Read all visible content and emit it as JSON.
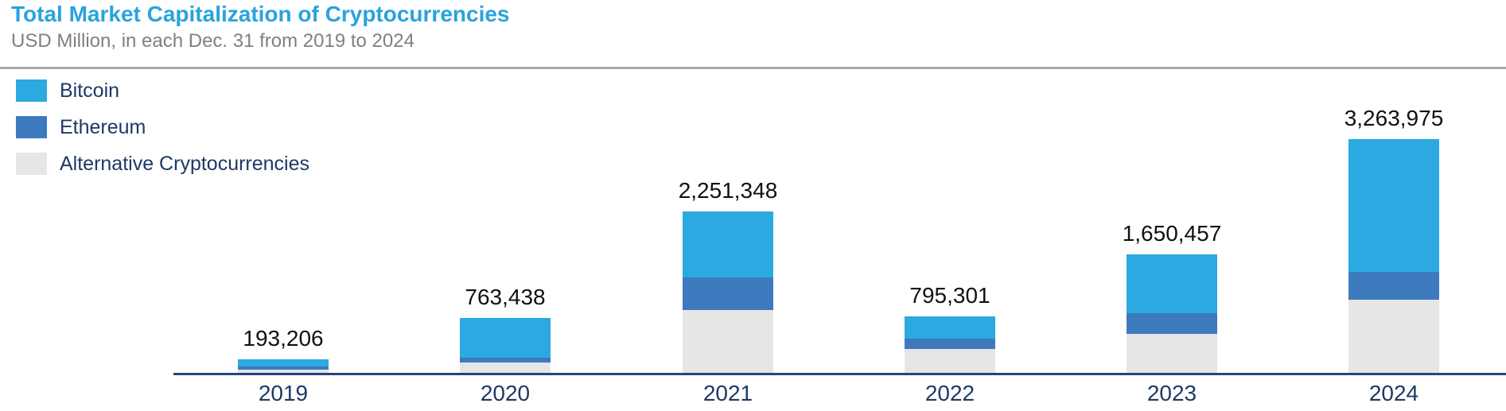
{
  "header": {
    "title": "Total Market Capitalization of Cryptocurrencies",
    "subtitle": "USD Million, in each Dec. 31 from 2019 to 2024"
  },
  "legend": {
    "items": [
      {
        "id": "bitcoin",
        "label": "Bitcoin",
        "color": "#2ba9e0"
      },
      {
        "id": "ethereum",
        "label": "Ethereum",
        "color": "#3d7abe"
      },
      {
        "id": "alternative",
        "label": "Alternative Cryptocurrencies",
        "color": "#e6e6e6"
      }
    ]
  },
  "colors": {
    "title_accent": "#29a3dd",
    "subtitle_gray": "#808080",
    "divider_gray": "#a9a9a9",
    "axis_navy": "#26437e",
    "label_navy": "#1f3864",
    "value_label_black": "#111111",
    "bitcoin_blue": "#2ba9e0",
    "ethereum_blue": "#3d7abe",
    "alt_gray": "#e6e6e6"
  },
  "chart_data": {
    "type": "bar",
    "stacked": true,
    "title": "Total Market Capitalization of Cryptocurrencies",
    "subtitle": "USD Million, in each Dec. 31 from 2019 to 2024",
    "xlabel": "",
    "ylabel": "USD Million",
    "categories": [
      "2019",
      "2020",
      "2021",
      "2022",
      "2023",
      "2024"
    ],
    "series": [
      {
        "name": "Bitcoin",
        "color": "#2ba9e0",
        "values": [
          105000,
          553000,
          918000,
          316000,
          820000,
          1854000
        ]
      },
      {
        "name": "Ethereum",
        "color": "#3d7abe",
        "values": [
          45000,
          66000,
          459000,
          142000,
          288000,
          389000
        ]
      },
      {
        "name": "Alternative Cryptocurrencies",
        "color": "#e6e6e6",
        "values": [
          43206,
          144438,
          874348,
          337301,
          542457,
          1020975
        ]
      }
    ],
    "totals": [
      193206,
      763438,
      2251348,
      795301,
      1650457,
      3263975
    ],
    "total_labels": [
      "193,206",
      "763,438",
      "2,251,348",
      "795,301",
      "1,650,457",
      "3,263,975"
    ],
    "ylim": [
      0,
      3500000
    ],
    "grid": false,
    "value_axis_visible": false,
    "legend_position": "top-left",
    "series_values_estimated_from_pixels": true
  }
}
